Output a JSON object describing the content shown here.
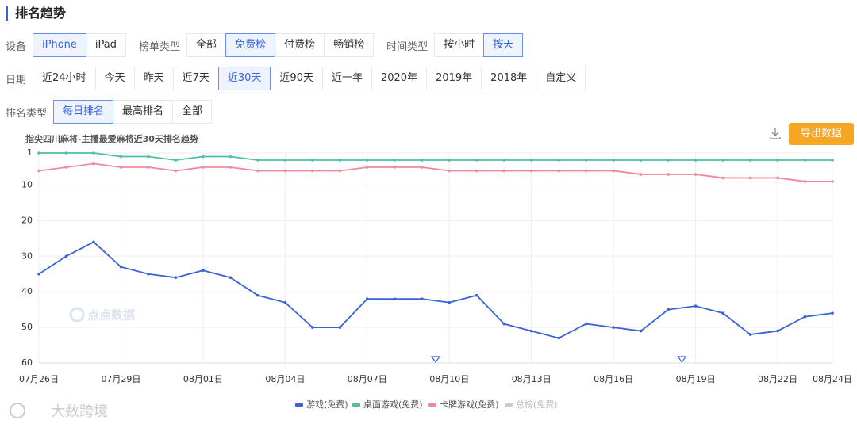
{
  "header": {
    "title": "排名趋势"
  },
  "filter_rows": [
    [
      {
        "label": "设备",
        "options": [
          "iPhone",
          "iPad"
        ],
        "active": 0
      },
      {
        "label": "榜单类型",
        "options": [
          "全部",
          "免费榜",
          "付费榜",
          "畅销榜"
        ],
        "active": 1
      },
      {
        "label": "时间类型",
        "options": [
          "按小时",
          "按天"
        ],
        "active": 1
      }
    ],
    [
      {
        "label": "日期",
        "options": [
          "近24小时",
          "今天",
          "昨天",
          "近7天",
          "近30天",
          "近90天",
          "近一年",
          "2020年",
          "2019年",
          "2018年",
          "自定义"
        ],
        "active": 4
      }
    ],
    [
      {
        "label": "排名类型",
        "options": [
          "每日排名",
          "最高排名",
          "全部"
        ],
        "active": 0
      }
    ]
  ],
  "export_button": "导出数据",
  "watermarks": [
    "点点数据",
    "大数跨境"
  ],
  "chart_data": {
    "type": "line",
    "title": "指尖四川麻将-主播最爱麻将近30天排名趋势",
    "categories": [
      "07月26日",
      null,
      null,
      "07月29日",
      null,
      null,
      "08月01日",
      null,
      null,
      "08月04日",
      null,
      null,
      "08月07日",
      null,
      null,
      "08月10日",
      null,
      null,
      "08月13日",
      null,
      null,
      "08月16日",
      null,
      null,
      "08月19日",
      null,
      null,
      "08月22日",
      null,
      "08月24日"
    ],
    "ylim": [
      1,
      60
    ],
    "yticks": [
      1,
      10,
      20,
      30,
      40,
      50,
      60
    ],
    "y_inverted": true,
    "grid": true,
    "legend": "bottom",
    "series": [
      {
        "name": "游戏(免费)",
        "color": "#3a62d6",
        "visible": true,
        "values": [
          35,
          30,
          26,
          33,
          35,
          36,
          34,
          36,
          41,
          43,
          50,
          50,
          42,
          42,
          42,
          43,
          41,
          49,
          51,
          53,
          49,
          50,
          51,
          45,
          44,
          46,
          52,
          51,
          47,
          46
        ]
      },
      {
        "name": "桌面游戏(免费)",
        "color": "#4dbfa8",
        "visible": true,
        "values": [
          1,
          1,
          1,
          2,
          2,
          3,
          2,
          2,
          3,
          3,
          3,
          3,
          3,
          3,
          3,
          3,
          3,
          3,
          3,
          3,
          3,
          3,
          3,
          3,
          3,
          3,
          3,
          3,
          3,
          3
        ]
      },
      {
        "name": "卡牌游戏(免费)",
        "color": "#f08a9a",
        "visible": true,
        "values": [
          6,
          5,
          4,
          5,
          5,
          6,
          5,
          5,
          6,
          6,
          6,
          6,
          5,
          5,
          5,
          6,
          6,
          6,
          6,
          6,
          6,
          6,
          7,
          7,
          7,
          8,
          8,
          8,
          9,
          9
        ]
      },
      {
        "name": "总榜(免费)",
        "color": "#cccccc",
        "visible": false,
        "values": [
          null,
          null,
          null,
          null,
          null,
          null,
          null,
          null,
          null,
          null,
          null,
          null,
          null,
          null,
          null,
          null,
          null,
          null,
          null,
          null,
          null,
          null,
          null,
          null,
          null,
          null,
          null,
          null,
          null,
          null
        ]
      }
    ]
  }
}
